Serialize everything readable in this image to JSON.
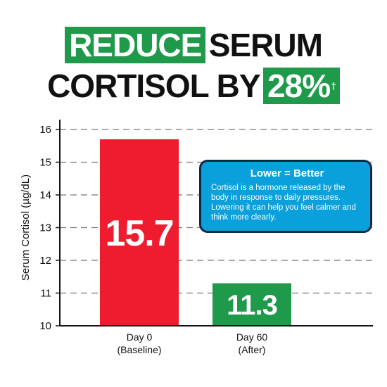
{
  "headline": {
    "line1_highlight": "REDUCE",
    "line1_rest": "SERUM",
    "line2_lead": "CORTISOL BY",
    "line2_highlight": "28%",
    "footnote_mark": "†"
  },
  "callout": {
    "title": "Lower = Better",
    "body": "Cortisol is a hormone released by the body in response to daily pressures. Lowering it can help you feel calmer and think more clearly."
  },
  "colors": {
    "headline_box": "#1f9a4b",
    "bar_baseline": "#ee1c2e",
    "bar_after": "#1f9a4b",
    "callout_fill": "#0aa0dc",
    "callout_border": "#0b2a4a"
  },
  "chart_data": {
    "type": "bar",
    "categories": [
      [
        "Day 0",
        "(Baseline)"
      ],
      [
        "Day 60",
        "(After)"
      ]
    ],
    "values": [
      15.7,
      11.3
    ],
    "value_labels": [
      "15.7",
      "11.3"
    ],
    "ylabel": "Serum Cortisol (µg/dL)",
    "ylim": [
      10,
      16
    ],
    "yticks": [
      10,
      11,
      12,
      13,
      14,
      15,
      16
    ],
    "grid": true
  }
}
